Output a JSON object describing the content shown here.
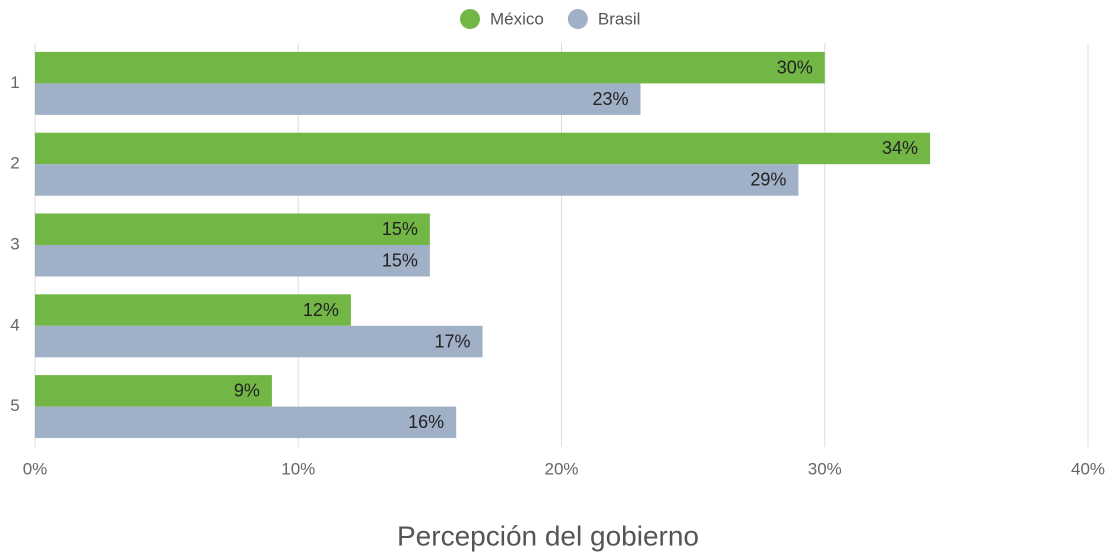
{
  "chart_data": {
    "type": "bar",
    "orientation": "horizontal",
    "x_label": "Percepción del gobierno",
    "categories": [
      "1",
      "2",
      "3",
      "4",
      "5"
    ],
    "series": [
      {
        "name": "México",
        "color": "#72b646",
        "values": [
          30,
          34,
          15,
          12,
          9
        ],
        "value_labels": [
          "30%",
          "34%",
          "15%",
          "12%",
          "9%"
        ]
      },
      {
        "name": "Brasil",
        "color": "#9fb0c7",
        "values": [
          23,
          29,
          15,
          17,
          16
        ],
        "value_labels": [
          "23%",
          "29%",
          "15%",
          "17%",
          "16%"
        ]
      }
    ],
    "xlim": [
      0,
      40
    ],
    "xticks": [
      {
        "value": 0,
        "label": "0%"
      },
      {
        "value": 10,
        "label": "10%"
      },
      {
        "value": 20,
        "label": "20%"
      },
      {
        "value": 30,
        "label": "30%"
      },
      {
        "value": 40,
        "label": "40%"
      }
    ],
    "grid": true,
    "legend": "top"
  }
}
